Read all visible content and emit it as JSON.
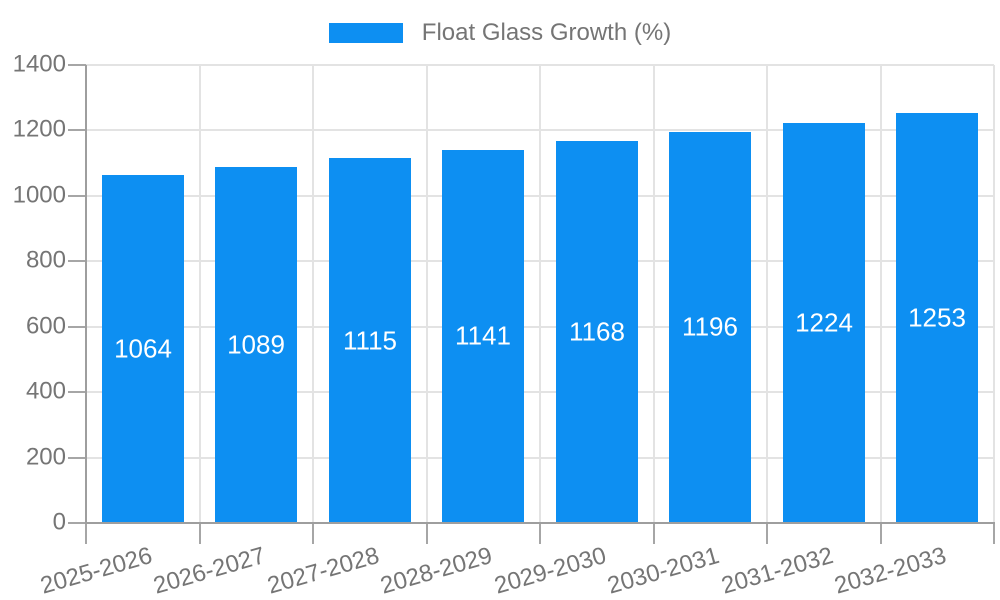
{
  "legend": {
    "label": "Float Glass Growth (%)"
  },
  "colors": {
    "bar": "#0d8ff2",
    "grid_line": "#e3e3e3",
    "axis_line": "#9e9e9e",
    "tick_mark": "#a6a6a6",
    "axis_text": "#757575",
    "bar_value_text": "#ffffff",
    "background": "#ffffff"
  },
  "chart_data": {
    "type": "bar",
    "title": "",
    "legend_position": "top-center",
    "categories": [
      "2025-2026",
      "2026-2027",
      "2027-2028",
      "2028-2029",
      "2029-2030",
      "2030-2031",
      "2031-2032",
      "2032-2033"
    ],
    "series": [
      {
        "name": "Float Glass Growth (%)",
        "color": "#0d8ff2",
        "values": [
          1064,
          1089,
          1115,
          1141,
          1168,
          1196,
          1224,
          1253
        ]
      }
    ],
    "value_labels": "inside-center-white",
    "xlabel": "",
    "ylabel": "",
    "ylim": [
      0,
      1400
    ],
    "yticks": [
      0,
      200,
      400,
      600,
      800,
      1000,
      1200,
      1400
    ],
    "grid": true,
    "x_tick_label_rotation_deg": -16
  }
}
